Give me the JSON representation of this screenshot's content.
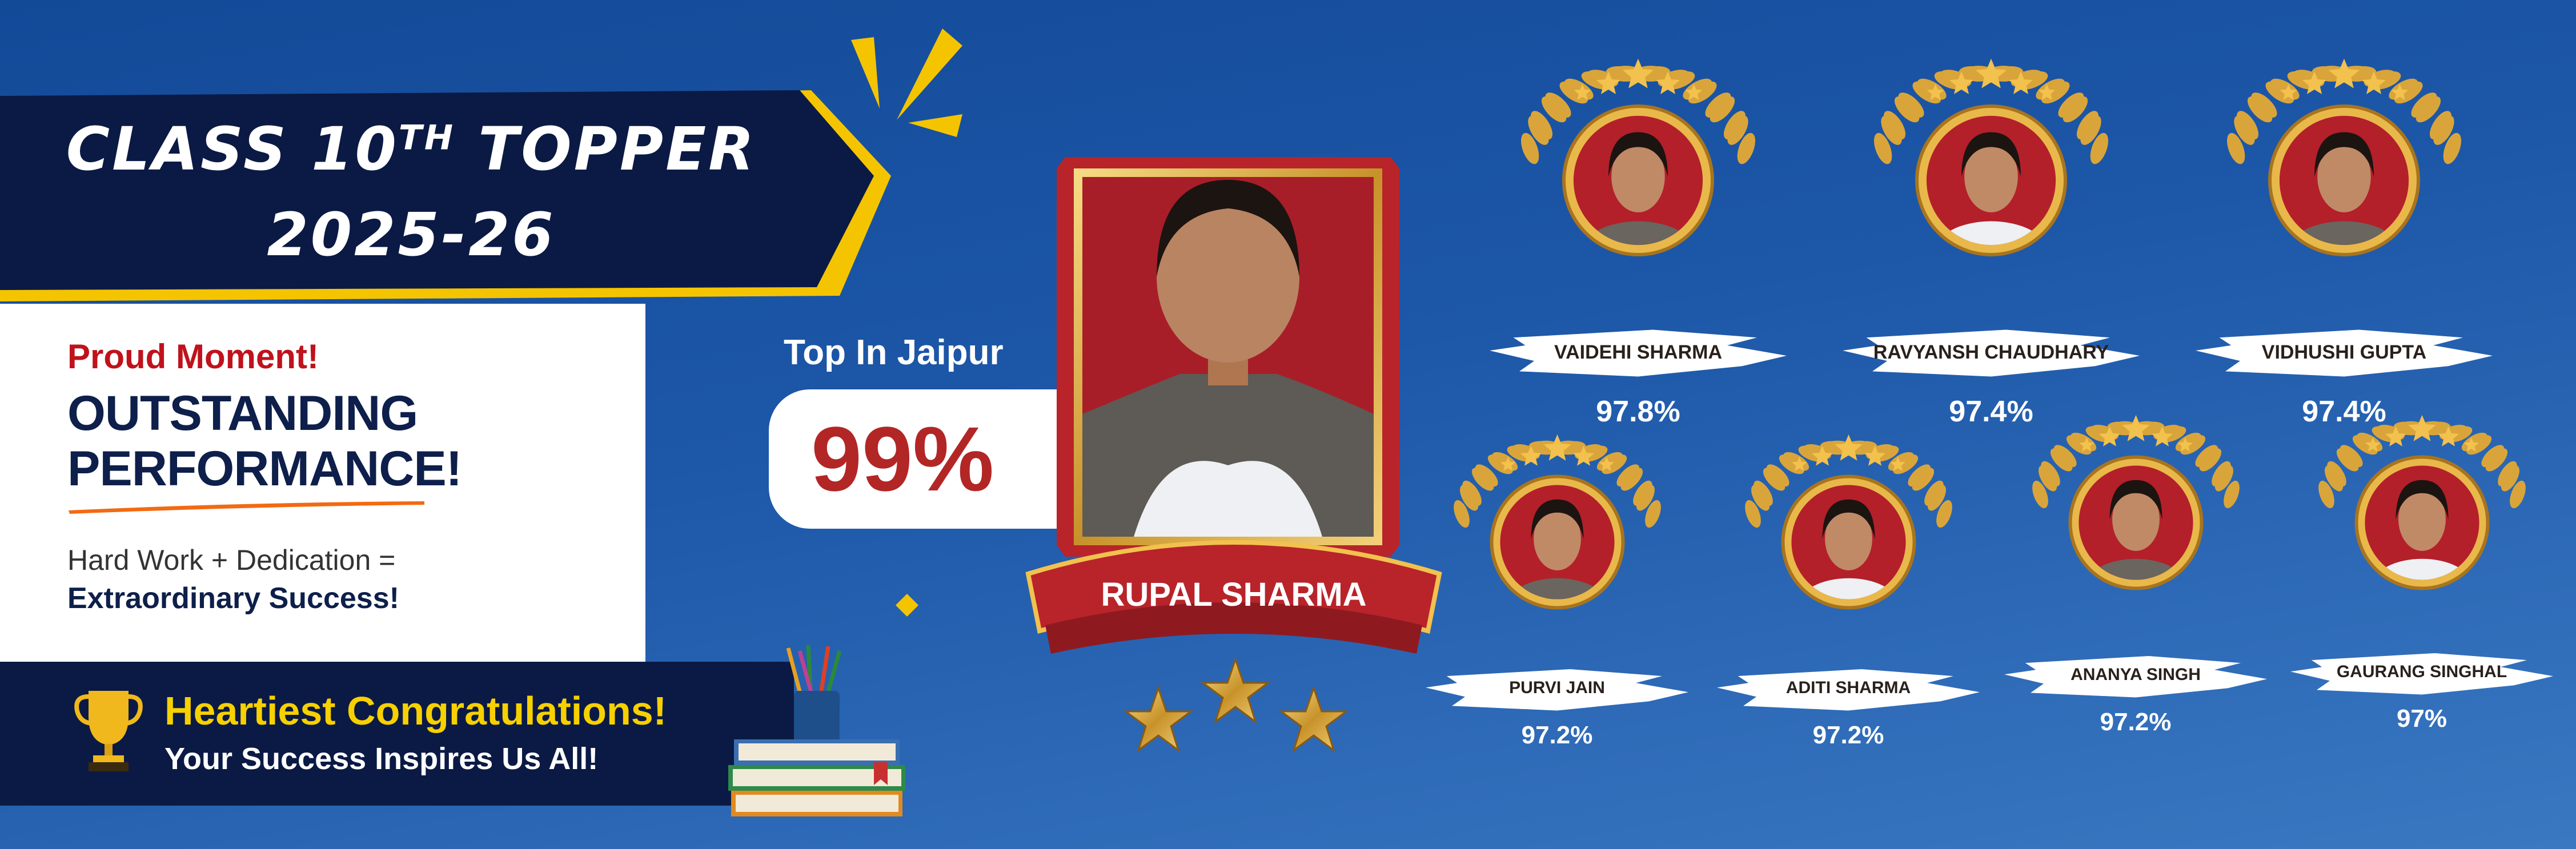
{
  "header": {
    "title_line1": "CLASS 10",
    "title_sup": "TH",
    "title_line1_end": " TOPPER",
    "title_line2": "2025-26"
  },
  "panel": {
    "proud": "Proud Moment!",
    "headline1": "OUTSTANDING",
    "headline2": "PERFORMANCE!",
    "tagline1": "Hard Work + Dedication =",
    "tagline2": "Extraordinary Success!"
  },
  "footer": {
    "congrats": "Heartiest Congratulations!",
    "inspire": "Your Success Inspires Us All!"
  },
  "top": {
    "label": "Top In Jaipur",
    "score": "99%",
    "name": "RUPAL SHARMA"
  },
  "toppers": [
    {
      "name": "VAIDEHI SHARMA",
      "score": "97.8%"
    },
    {
      "name": "RAVYANSH CHAUDHARY",
      "score": "97.4%"
    },
    {
      "name": "VIDHUSHI GUPTA",
      "score": "97.4%"
    },
    {
      "name": "PURVI JAIN",
      "score": "97.2%"
    },
    {
      "name": "ADITI SHARMA",
      "score": "97.2%"
    },
    {
      "name": "ANANYA SINGH",
      "score": "97.2%"
    },
    {
      "name": "GAURANG SINGHAL",
      "score": "97%"
    }
  ],
  "colors": {
    "navy": "#0b1a44",
    "gold": "#f5c400",
    "red": "#b32626",
    "blue": "#1d57a8"
  }
}
